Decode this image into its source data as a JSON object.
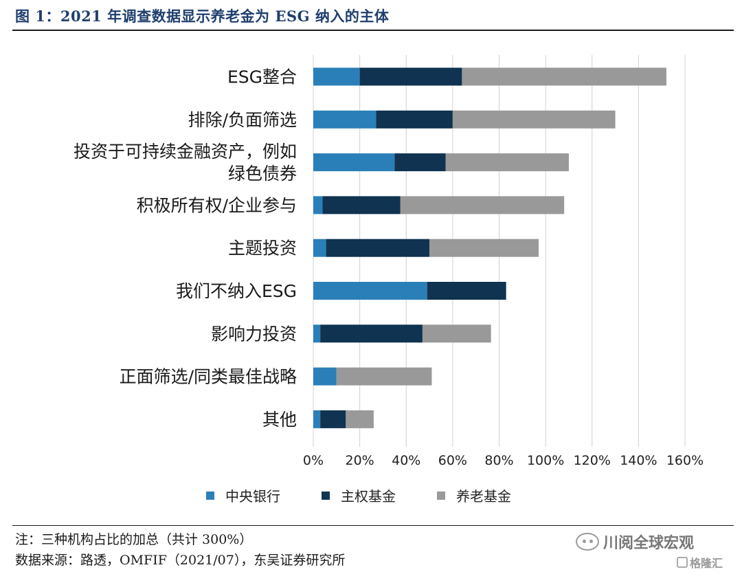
{
  "figure_title": "图 1：2021 年调查数据显示养老金为 ESG 纳入的主体",
  "colors": {
    "central_bank": "#2b7fb8",
    "sovereign_fund": "#0f3350",
    "pension_fund": "#999999",
    "grid": "#d0d0d0"
  },
  "chart_data": {
    "type": "bar",
    "orientation": "horizontal",
    "stacked": true,
    "categories": [
      [
        "ESG整合"
      ],
      [
        "排除/负面筛选"
      ],
      [
        "投资于可持续金融资产，例如",
        "绿色债券"
      ],
      [
        "积极所有权/企业参与"
      ],
      [
        "主题投资"
      ],
      [
        "我们不纳入ESG"
      ],
      [
        "影响力投资"
      ],
      [
        "正面筛选/同类最佳战略"
      ],
      [
        "其他"
      ]
    ],
    "series": [
      {
        "name": "中央银行",
        "color": "#2b7fb8",
        "values": [
          20,
          27,
          35,
          4,
          5.5,
          49,
          3,
          10,
          3
        ]
      },
      {
        "name": "主权基金",
        "color": "#0f3350",
        "values": [
          44,
          33,
          22,
          33.5,
          44.5,
          34,
          44,
          0,
          11
        ]
      },
      {
        "name": "养老基金",
        "color": "#999999",
        "values": [
          88,
          70,
          53,
          70.5,
          47,
          0,
          29.5,
          41,
          12
        ]
      }
    ],
    "x_ticks": [
      "0%",
      "20%",
      "40%",
      "60%",
      "80%",
      "100%",
      "120%",
      "140%",
      "160%"
    ],
    "xlim": [
      0,
      160
    ],
    "grid": true,
    "legend_position": "bottom"
  },
  "notes": {
    "note1": "注：三种机构占比的加总（共计 300%）",
    "note2": "数据来源：路透，OMFIF（2021/07），东吴证券研究所"
  },
  "watermarks": {
    "wechat_icon": "wechat-icon",
    "account": "川阅全球宏观",
    "site_icon": "gelonghui-icon",
    "site": "格隆汇"
  }
}
